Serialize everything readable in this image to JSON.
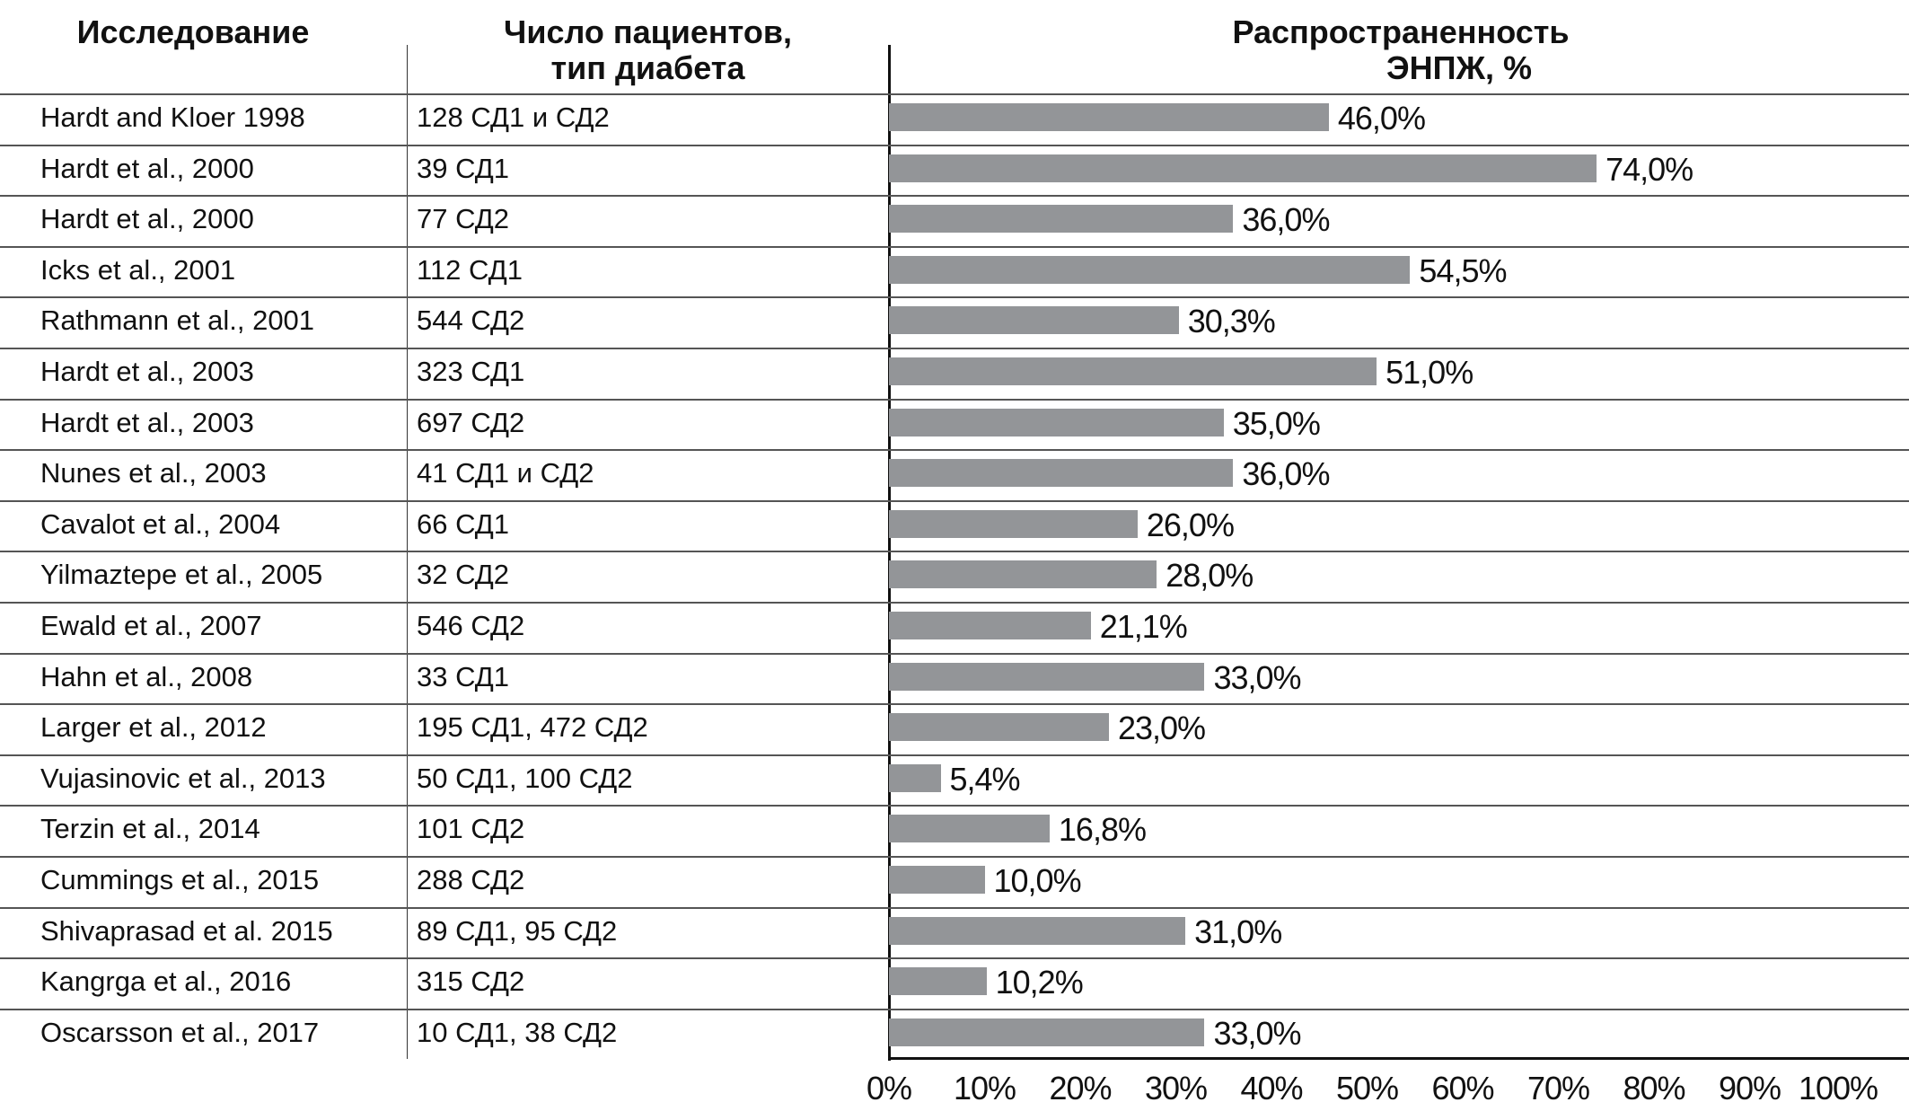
{
  "chart_data": {
    "type": "bar",
    "orientation": "horizontal",
    "columns": {
      "study": "Исследование",
      "patients": "Число пациентов, тип диабета",
      "prevalence_line1": "Распространенность",
      "prevalence_line2": "ЭНПЖ, %"
    },
    "patients_header_line1": "Число пациентов,",
    "patients_header_line2": "тип диабета",
    "rows": [
      {
        "study": "Hardt and Kloer 1998",
        "patients": "128 СД1 и СД2",
        "value": 46.0,
        "label": "46,0%"
      },
      {
        "study": "Hardt et al., 2000",
        "patients": "39 СД1",
        "value": 74.0,
        "label": "74,0%"
      },
      {
        "study": "Hardt et al., 2000",
        "patients": "77 СД2",
        "value": 36.0,
        "label": "36,0%"
      },
      {
        "study": "Icks et al., 2001",
        "patients": "112 СД1",
        "value": 54.5,
        "label": "54,5%"
      },
      {
        "study": "Rathmann et al., 2001",
        "patients": "544 СД2",
        "value": 30.3,
        "label": "30,3%"
      },
      {
        "study": "Hardt et al., 2003",
        "patients": "323 СД1",
        "value": 51.0,
        "label": "51,0%"
      },
      {
        "study": "Hardt et al., 2003",
        "patients": "697 СД2",
        "value": 35.0,
        "label": "35,0%"
      },
      {
        "study": "Nunes et al., 2003",
        "patients": "41 СД1 и СД2",
        "value": 36.0,
        "label": "36,0%"
      },
      {
        "study": "Cavalot et al., 2004",
        "patients": "66 СД1",
        "value": 26.0,
        "label": "26,0%"
      },
      {
        "study": "Yilmaztepe et al., 2005",
        "patients": "32 СД2",
        "value": 28.0,
        "label": "28,0%"
      },
      {
        "study": "Ewald et al., 2007",
        "patients": "546 СД2",
        "value": 21.1,
        "label": "21,1%"
      },
      {
        "study": "Hahn et al., 2008",
        "patients": "33 СД1",
        "value": 33.0,
        "label": "33,0%"
      },
      {
        "study": "Larger et al., 2012",
        "patients": "195 СД1, 472 СД2",
        "value": 23.0,
        "label": "23,0%"
      },
      {
        "study": "Vujasinovic et al., 2013",
        "patients": "50 СД1, 100 СД2",
        "value": 5.4,
        "label": "5,4%"
      },
      {
        "study": "Terzin et al., 2014",
        "patients": "101 СД2",
        "value": 16.8,
        "label": "16,8%"
      },
      {
        "study": "Cummings et al., 2015",
        "patients": "288 СД2",
        "value": 10.0,
        "label": "10,0%"
      },
      {
        "study": "Shivaprasad et al. 2015",
        "patients": "89 СД1, 95 СД2",
        "value": 31.0,
        "label": "31,0%"
      },
      {
        "study": "Kangrga et al., 2016",
        "patients": "315 СД2",
        "value": 10.2,
        "label": "10,2%"
      },
      {
        "study": "Oscarsson et al., 2017",
        "patients": "10 СД1, 38 СД2",
        "value": 33.0,
        "label": "33,0%"
      }
    ],
    "xlim": [
      0,
      100
    ],
    "x_ticks": [
      "0%",
      "10%",
      "20%",
      "30%",
      "40%",
      "50%",
      "60%",
      "70%",
      "80%",
      "90%",
      "100%"
    ],
    "bar_color": "#939598",
    "grid": false,
    "legend": "none"
  }
}
